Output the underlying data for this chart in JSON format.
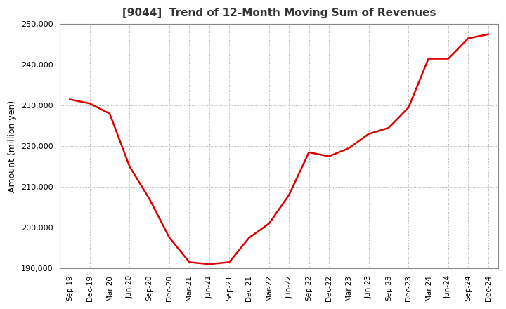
{
  "title": "[9044]  Trend of 12-Month Moving Sum of Revenues",
  "ylabel": "Amount (million yen)",
  "line_color": "#dd0000",
  "background_color": "#ffffff",
  "plot_bg_color": "#ffffff",
  "grid_color": "#999999",
  "ylim": [
    190000,
    250000
  ],
  "yticks": [
    190000,
    200000,
    210000,
    220000,
    230000,
    240000,
    250000
  ],
  "x_labels": [
    "Sep-19",
    "Dec-19",
    "Mar-20",
    "Jun-20",
    "Sep-20",
    "Dec-20",
    "Mar-21",
    "Jun-21",
    "Sep-21",
    "Dec-21",
    "Mar-22",
    "Jun-22",
    "Sep-22",
    "Dec-22",
    "Mar-23",
    "Jun-23",
    "Sep-23",
    "Dec-23",
    "Mar-24",
    "Jun-24",
    "Sep-24",
    "Dec-24"
  ],
  "values": [
    231500,
    230500,
    228000,
    215000,
    207000,
    197500,
    191500,
    191000,
    191500,
    197500,
    201000,
    208000,
    218500,
    217500,
    219500,
    223000,
    224500,
    229500,
    241500,
    241500,
    246500,
    247500
  ],
  "title_fontsize": 11,
  "ylabel_fontsize": 9,
  "tick_fontsize": 8,
  "xtick_fontsize": 7.5,
  "line_width": 1.8
}
